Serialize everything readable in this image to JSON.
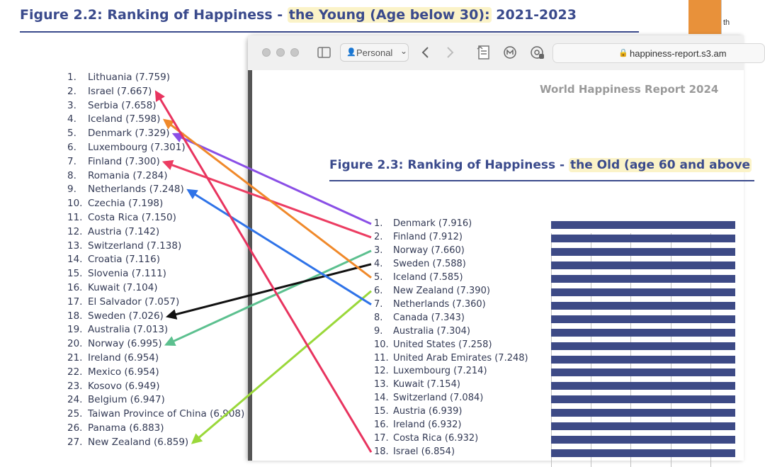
{
  "left_figure": {
    "title_prefix": "Figure 2.2: Ranking of Happiness -",
    "title_highlight": "the Young (Age below 30):",
    "title_suffix": "2021-2023",
    "rows": [
      {
        "num": "1.",
        "label": "Lithuania (7.759)"
      },
      {
        "num": "2.",
        "label": "Israel (7.667)"
      },
      {
        "num": "3.",
        "label": "Serbia (7.658)"
      },
      {
        "num": "4.",
        "label": "Iceland (7.598)"
      },
      {
        "num": "5.",
        "label": "Denmark (7.329)"
      },
      {
        "num": "6.",
        "label": "Luxembourg (7.301)"
      },
      {
        "num": "7.",
        "label": "Finland (7.300)"
      },
      {
        "num": "8.",
        "label": "Romania (7.284)"
      },
      {
        "num": "9.",
        "label": "Netherlands (7.248)"
      },
      {
        "num": "10.",
        "label": "Czechia (7.198)"
      },
      {
        "num": "11.",
        "label": "Costa Rica (7.150)"
      },
      {
        "num": "12.",
        "label": "Austria (7.142)"
      },
      {
        "num": "13.",
        "label": "Switzerland (7.138)"
      },
      {
        "num": "14.",
        "label": "Croatia (7.116)"
      },
      {
        "num": "15.",
        "label": "Slovenia (7.111)"
      },
      {
        "num": "16.",
        "label": "Kuwait (7.104)"
      },
      {
        "num": "17.",
        "label": "El Salvador (7.057)"
      },
      {
        "num": "18.",
        "label": "Sweden (7.026)"
      },
      {
        "num": "19.",
        "label": "Australia (7.013)"
      },
      {
        "num": "20.",
        "label": "Norway (6.995)"
      },
      {
        "num": "21.",
        "label": "Ireland (6.954)"
      },
      {
        "num": "22.",
        "label": "Mexico (6.954)"
      },
      {
        "num": "23.",
        "label": "Kosovo (6.949)"
      },
      {
        "num": "24.",
        "label": "Belgium (6.947)"
      },
      {
        "num": "25.",
        "label": "Taiwan Province of China (6.908)"
      },
      {
        "num": "26.",
        "label": "Panama (6.883)"
      },
      {
        "num": "27.",
        "label": "New Zealand (6.859)"
      }
    ]
  },
  "corner_thumb_text": "th",
  "browser": {
    "profile_label": "Personal",
    "profile_chevron": "⌄",
    "address": "happiness-report.s3.am",
    "report_header": "World Happiness Report 2024",
    "title_prefix": "Figure 2.3: Ranking of Happiness -",
    "title_highlight": "the Old (age 60 and above",
    "rows": [
      {
        "num": "1.",
        "label": "Denmark (7.916)"
      },
      {
        "num": "2.",
        "label": "Finland (7.912)"
      },
      {
        "num": "3.",
        "label": "Norway (7.660)"
      },
      {
        "num": "4.",
        "label": "Sweden (7.588)"
      },
      {
        "num": "5.",
        "label": "Iceland (7.585)"
      },
      {
        "num": "6.",
        "label": "New Zealand (7.390)"
      },
      {
        "num": "7.",
        "label": "Netherlands (7.360)"
      },
      {
        "num": "8.",
        "label": "Canada (7.343)"
      },
      {
        "num": "9.",
        "label": "Australia (7.304)"
      },
      {
        "num": "10.",
        "label": "United States (7.258)"
      },
      {
        "num": "11.",
        "label": "United Arab Emirates (7.248)"
      },
      {
        "num": "12.",
        "label": "Luxembourg (7.214)"
      },
      {
        "num": "13.",
        "label": "Kuwait (7.154)"
      },
      {
        "num": "14.",
        "label": "Switzerland (7.084)"
      },
      {
        "num": "15.",
        "label": "Austria (6.939)"
      },
      {
        "num": "16.",
        "label": "Ireland (6.932)"
      },
      {
        "num": "17.",
        "label": "Costa Rica (6.932)"
      },
      {
        "num": "18.",
        "label": "Israel (6.854)"
      }
    ]
  },
  "arrows": [
    {
      "from": "Denmark",
      "color": "#8a4fe6"
    },
    {
      "from": "Finland",
      "color": "#ec3d62"
    },
    {
      "from": "Norway",
      "color": "#5cc08f"
    },
    {
      "from": "Sweden",
      "color": "#111111"
    },
    {
      "from": "Iceland",
      "color": "#f0892a"
    },
    {
      "from": "New Zealand",
      "color": "#9ad83a"
    },
    {
      "from": "Netherlands",
      "color": "#2f73e8"
    },
    {
      "from": "Israel",
      "color": "#e8345f"
    }
  ]
}
